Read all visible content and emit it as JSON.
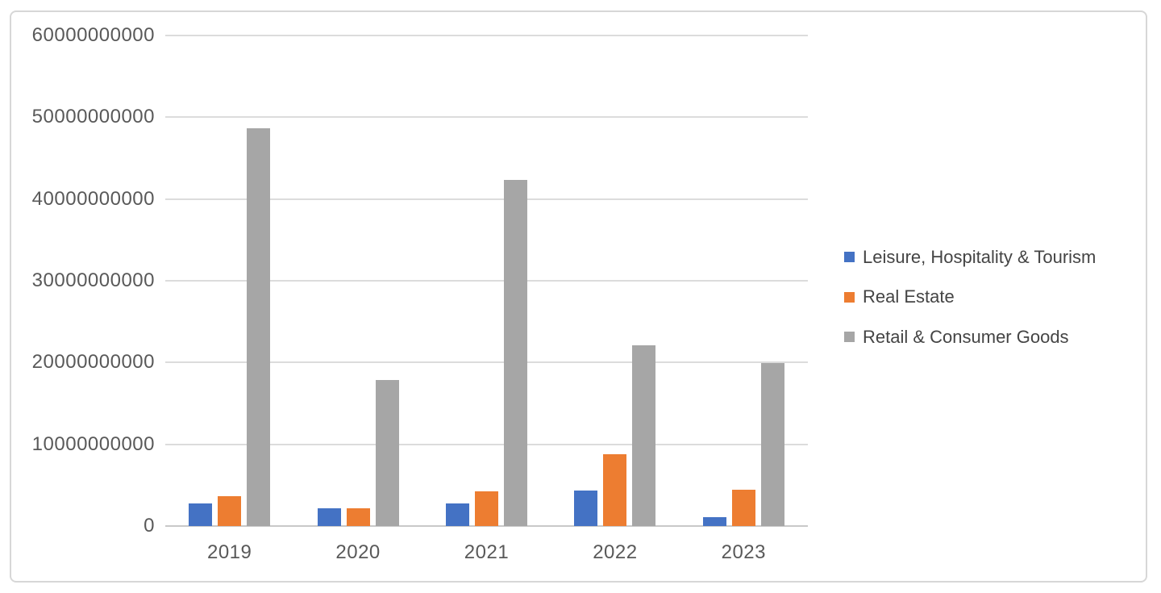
{
  "chart_data": {
    "type": "bar",
    "title": "",
    "xlabel": "",
    "ylabel": "",
    "categories": [
      "2019",
      "2020",
      "2021",
      "2022",
      "2023"
    ],
    "series": [
      {
        "name": "Leisure, Hospitality & Tourism",
        "slug": "leisure-hospitality-tourism",
        "color": "#4472C4",
        "values": [
          2800000000,
          2200000000,
          2800000000,
          4300000000,
          1100000000
        ]
      },
      {
        "name": "Real Estate",
        "slug": "real-estate",
        "color": "#ED7D31",
        "values": [
          3700000000,
          2200000000,
          4200000000,
          8800000000,
          4400000000
        ]
      },
      {
        "name": "Retail & Consumer Goods",
        "slug": "retail-consumer-goods",
        "color": "#A6A6A6",
        "values": [
          48700000000,
          17900000000,
          42300000000,
          22100000000,
          19900000000
        ]
      }
    ],
    "ylim": [
      0,
      60000000000
    ],
    "y_tick_step": 10000000000,
    "y_tick_labels": [
      "0",
      "10000000000",
      "20000000000",
      "30000000000",
      "40000000000",
      "50000000000",
      "60000000000"
    ],
    "grid": true,
    "legend_position": "right",
    "colors": {
      "gridline": "#dcdcdc",
      "axis_line": "#c9c9c9",
      "axis_text": "#595959",
      "legend_text": "#444444",
      "frame_border": "#d7d7d7",
      "background": "#ffffff"
    }
  }
}
